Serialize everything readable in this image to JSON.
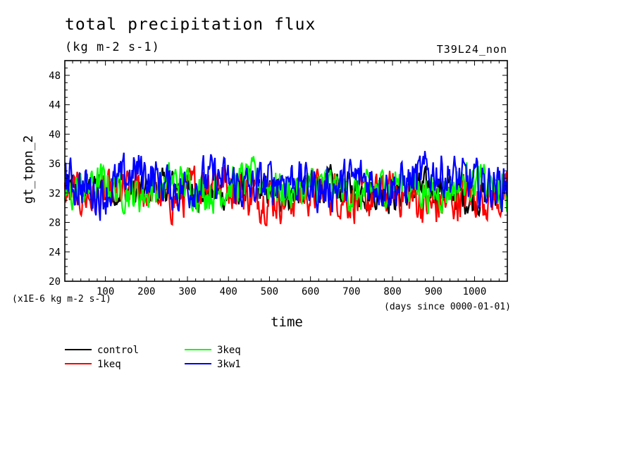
{
  "chart_data": {
    "type": "line",
    "title": "total precipitation flux",
    "subtitle": "(kg m-2 s-1)",
    "run_label": "T39L24_non",
    "ylabel": "gt_tppn_2",
    "yunits_note": "(x1E-6 kg m-2 s-1)",
    "xlabel": "time",
    "xunits_note": "(days since 0000-01-01)",
    "xlim": [
      1,
      1080
    ],
    "ylim": [
      20,
      50
    ],
    "xticks": [
      100,
      200,
      300,
      400,
      500,
      600,
      700,
      800,
      900,
      1000
    ],
    "yticks": [
      20,
      24,
      28,
      32,
      36,
      40,
      44,
      48
    ],
    "grid": false,
    "legend_position": "bottom-left",
    "series": [
      {
        "name": "control",
        "color": "#000000",
        "mean": 32.5,
        "min": 28.5,
        "max": 36.0,
        "x": [
          1,
          90,
          180,
          270,
          360,
          450,
          540,
          630,
          720,
          810,
          900,
          990,
          1080
        ],
        "values": [
          32.4,
          33.0,
          31.5,
          33.8,
          30.2,
          32.9,
          31.0,
          34.1,
          32.2,
          30.6,
          33.5,
          29.4,
          32.6
        ]
      },
      {
        "name": "1keq",
        "color": "#ff0000",
        "mean": 32.0,
        "min": 27.6,
        "max": 37.4,
        "x": [
          1,
          90,
          180,
          270,
          360,
          450,
          540,
          630,
          720,
          810,
          900,
          990,
          1080
        ],
        "values": [
          31.8,
          30.4,
          33.2,
          29.6,
          37.4,
          31.2,
          30.1,
          33.5,
          29.0,
          32.4,
          27.6,
          31.8,
          30.0
        ]
      },
      {
        "name": "3keq",
        "color": "#00ff00",
        "mean": 32.5,
        "min": 28.5,
        "max": 37.0,
        "x": [
          1,
          90,
          180,
          270,
          360,
          450,
          540,
          630,
          720,
          810,
          900,
          990,
          1080
        ],
        "values": [
          30.5,
          34.6,
          30.8,
          35.2,
          31.4,
          36.0,
          31.8,
          34.2,
          30.6,
          35.0,
          31.2,
          35.6,
          31.0
        ]
      },
      {
        "name": "3kw1",
        "color": "#0000ff",
        "mean": 33.0,
        "min": 28.0,
        "max": 38.0,
        "x": [
          1,
          90,
          180,
          270,
          360,
          450,
          540,
          630,
          720,
          810,
          900,
          990,
          1080
        ],
        "values": [
          34.8,
          30.2,
          37.8,
          31.6,
          35.4,
          32.0,
          35.8,
          31.4,
          35.2,
          32.6,
          37.6,
          33.4,
          33.0
        ]
      }
    ]
  }
}
